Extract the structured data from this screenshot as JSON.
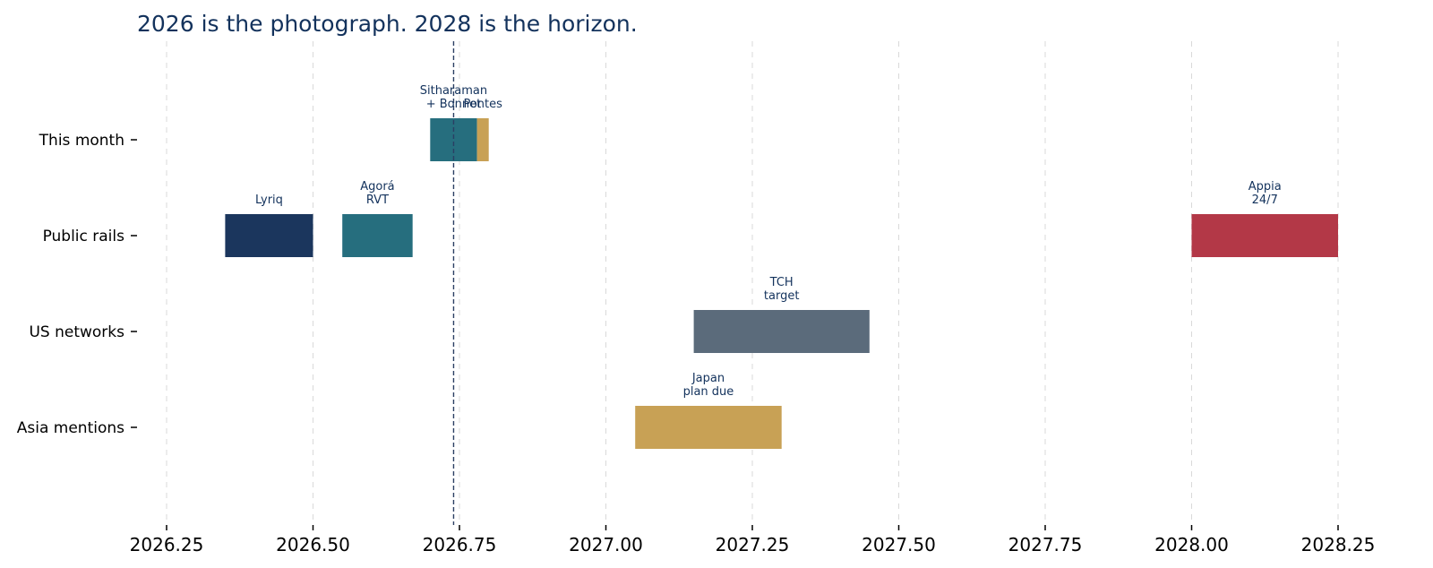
{
  "chart_data": {
    "type": "bar",
    "orientation": "horizontal-timeline",
    "title": "2026 is the photograph. 2028 is the horizon.",
    "categories": [
      "This month",
      "Public rails",
      "US networks",
      "Asia mentions"
    ],
    "xlim": [
      2026.15,
      2028.4
    ],
    "x_ticks": [
      2026.25,
      2026.5,
      2026.75,
      2027.0,
      2027.25,
      2027.5,
      2027.75,
      2028.0,
      2028.25
    ],
    "x_tick_labels": [
      "2026.25",
      "2026.50",
      "2026.75",
      "2027.00",
      "2027.25",
      "2027.50",
      "2027.75",
      "2028.00",
      "2028.25"
    ],
    "grid": "vertical-dashed",
    "reference_line": {
      "x": 2026.74,
      "style": "dashed",
      "color": "#2b3f63"
    },
    "bars": [
      {
        "category": "This month",
        "start": 2026.7,
        "end": 2026.78,
        "label": [
          "Sitharaman",
          "+ Bonnet"
        ],
        "color": "#266e7e"
      },
      {
        "category": "This month",
        "start": 2026.78,
        "end": 2026.8,
        "label": [
          "Pontes"
        ],
        "color": "#c8a155"
      },
      {
        "category": "Public rails",
        "start": 2026.35,
        "end": 2026.5,
        "label": [
          "Lyriq"
        ],
        "color": "#1b365d"
      },
      {
        "category": "Public rails",
        "start": 2026.55,
        "end": 2026.67,
        "label": [
          "Agorá",
          "RVT"
        ],
        "color": "#266e7e"
      },
      {
        "category": "Public rails",
        "start": 2028.0,
        "end": 2028.25,
        "label": [
          "Appia",
          "24/7"
        ],
        "color": "#b33847"
      },
      {
        "category": "US networks",
        "start": 2027.15,
        "end": 2027.45,
        "label": [
          "TCH",
          "target"
        ],
        "color": "#5b6b7b"
      },
      {
        "category": "Asia mentions",
        "start": 2027.05,
        "end": 2027.3,
        "label": [
          "Japan",
          "plan due"
        ],
        "color": "#c8a155"
      }
    ]
  }
}
